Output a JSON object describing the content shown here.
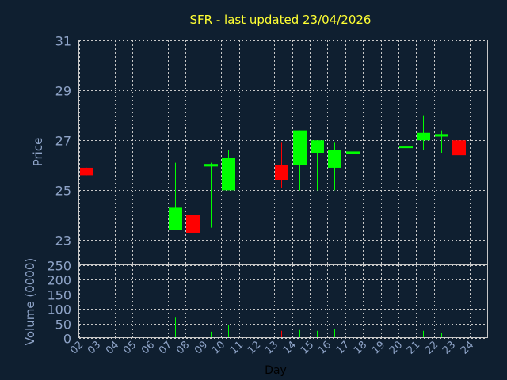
{
  "chart_data": {
    "type": "candlestick",
    "title": "SFR - last updated 23/04/2026",
    "price_axis": {
      "label": "Price",
      "range": [
        22,
        31
      ],
      "ticks": [
        23,
        25,
        27,
        29,
        31
      ]
    },
    "volume_axis": {
      "label": "Volume (0000)",
      "range": [
        0,
        250
      ],
      "ticks": [
        0,
        50,
        100,
        150,
        200,
        250
      ]
    },
    "x_axis": {
      "label": "Day",
      "ticks": [
        "02",
        "03",
        "04",
        "05",
        "06",
        "07",
        "08",
        "09",
        "10",
        "11",
        "12",
        "13",
        "14",
        "15",
        "16",
        "17",
        "18",
        "19",
        "20",
        "21",
        "22",
        "23",
        "24"
      ]
    },
    "colors": {
      "up": "#00ff00",
      "down": "#ff0000",
      "title": "#ffff33",
      "axis_text": "#8fa4c8",
      "grid": "#c8c8c8",
      "background": "#0f1f30"
    },
    "grid": true,
    "candles": [
      {
        "day": "02",
        "open": 25.9,
        "high": 25.9,
        "low": 25.6,
        "close": 25.6,
        "volume": 0
      },
      {
        "day": "07",
        "open": 23.4,
        "high": 26.1,
        "low": 23.4,
        "close": 24.3,
        "volume": 70
      },
      {
        "day": "08",
        "open": 24.0,
        "high": 26.4,
        "low": 23.3,
        "close": 23.3,
        "volume": 32
      },
      {
        "day": "09",
        "open": 25.95,
        "high": 26.1,
        "low": 23.5,
        "close": 26.05,
        "volume": 22
      },
      {
        "day": "10",
        "open": 25.0,
        "high": 26.6,
        "low": 25.0,
        "close": 26.3,
        "volume": 45
      },
      {
        "day": "13",
        "open": 26.0,
        "high": 26.9,
        "low": 25.1,
        "close": 25.4,
        "volume": 25
      },
      {
        "day": "14",
        "open": 26.0,
        "high": 27.4,
        "low": 25.0,
        "close": 27.4,
        "volume": 28
      },
      {
        "day": "15",
        "open": 26.5,
        "high": 27.0,
        "low": 25.0,
        "close": 27.0,
        "volume": 25
      },
      {
        "day": "16",
        "open": 25.9,
        "high": 26.9,
        "low": 25.0,
        "close": 26.6,
        "volume": 30
      },
      {
        "day": "17",
        "open": 26.45,
        "high": 27.0,
        "low": 25.0,
        "close": 26.55,
        "volume": 50
      },
      {
        "day": "20",
        "open": 26.75,
        "high": 27.4,
        "low": 25.5,
        "close": 26.75,
        "volume": 55
      },
      {
        "day": "21",
        "open": 27.0,
        "high": 28.0,
        "low": 26.6,
        "close": 27.3,
        "volume": 25
      },
      {
        "day": "22",
        "open": 27.15,
        "high": 27.4,
        "low": 26.5,
        "close": 27.25,
        "volume": 18
      },
      {
        "day": "23",
        "open": 27.0,
        "high": 27.0,
        "low": 25.9,
        "close": 26.4,
        "volume": 62
      }
    ]
  }
}
